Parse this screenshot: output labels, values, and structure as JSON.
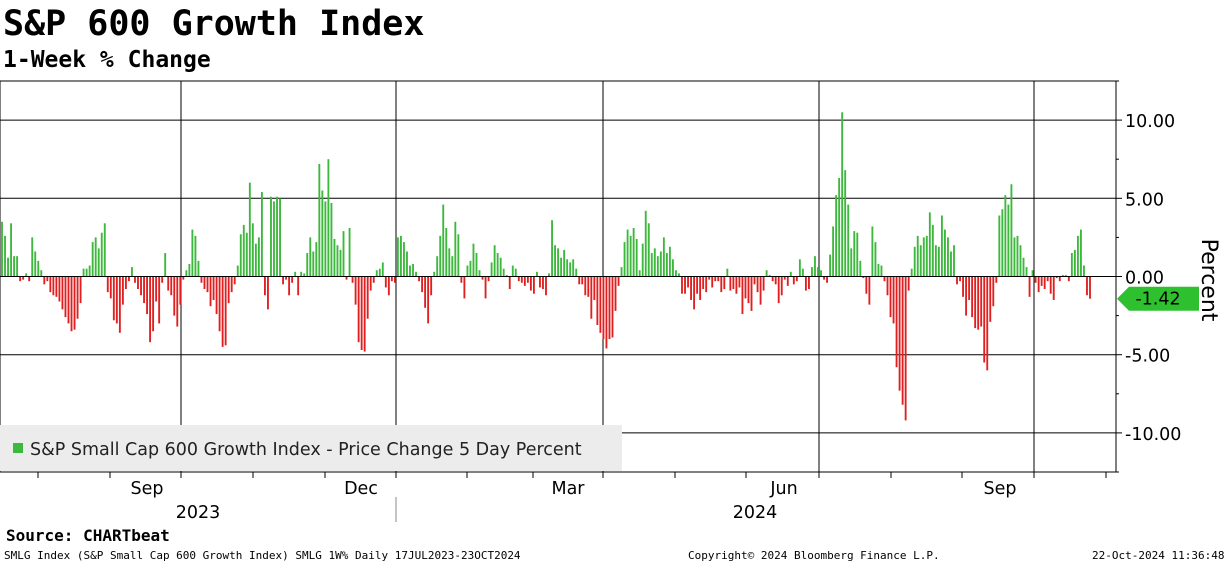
{
  "header": {
    "title": "S&P 600 Growth Index",
    "subtitle": "1-Week % Change"
  },
  "footer": {
    "source": "Source: CHARTbeat",
    "left": "SMLG Index (S&P Small Cap 600 Growth Index) SMLG 1W%  Daily 17JUL2023-23OCT2024",
    "center": "Copyright© 2024 Bloomberg Finance L.P.",
    "right": "22-Oct-2024 11:36:48"
  },
  "colors": {
    "positive": "#3cb83c",
    "negative": "#e02020",
    "last_value_bg": "#2ec02e",
    "legend_bg": "#ececec"
  },
  "chart_data": {
    "type": "bar",
    "title": "S&P 600 Growth Index",
    "subtitle": "1-Week % Change",
    "ylabel": "Percent",
    "ylim": [
      -12.5,
      12.5
    ],
    "y_ticks": [
      10,
      5,
      0,
      -5,
      -10
    ],
    "y_tick_labels": [
      "10.00",
      "5.00",
      "0.00",
      "-5.00",
      "-10.00"
    ],
    "month_labels": [
      "Sep",
      "Dec",
      "Mar",
      "Jun",
      "Sep"
    ],
    "year_labels": [
      "2023",
      "2024"
    ],
    "legend": "S&P Small Cap 600 Growth Index - Price Change 5 Day Percent",
    "legend_position": "bottom-left",
    "last_value": -1.42,
    "last_value_label": "-1.42",
    "date_range": [
      "2023-07-17",
      "2024-10-23"
    ],
    "values": [
      3.5,
      2.6,
      1.2,
      3.4,
      1.3,
      1.3,
      -0.3,
      -0.2,
      0.2,
      -0.3,
      2.5,
      1.6,
      1.0,
      0.4,
      -0.5,
      -0.3,
      -1.0,
      -1.2,
      -1.3,
      -1.6,
      -2.1,
      -2.6,
      -3.0,
      -3.5,
      -3.4,
      -2.7,
      -1.7,
      0.5,
      0.5,
      0.7,
      2.2,
      2.5,
      1.8,
      2.8,
      3.4,
      -1.0,
      -1.4,
      -2.8,
      -3.0,
      -3.6,
      -1.8,
      -0.8,
      -0.3,
      0.6,
      -0.4,
      -0.8,
      -1.2,
      -1.7,
      -2.4,
      -4.2,
      -3.5,
      -1.6,
      -3.0,
      -0.4,
      1.5,
      -0.9,
      -1.2,
      -2.5,
      -3.2,
      -1.8,
      -0.2,
      0.4,
      0.8,
      3.0,
      2.6,
      1.0,
      -0.4,
      -0.8,
      -1.0,
      -1.9,
      -1.5,
      -2.4,
      -3.5,
      -4.5,
      -4.4,
      -1.7,
      -1.0,
      -0.5,
      0.7,
      2.7,
      3.3,
      2.8,
      6.0,
      3.4,
      2.1,
      2.5,
      5.4,
      -1.2,
      -2.1,
      5.1,
      4.8,
      5.1,
      5.0,
      -0.5,
      -0.2,
      -1.2,
      -0.4,
      0.3,
      -1.2,
      0.3,
      0.2,
      1.5,
      2.5,
      1.6,
      2.2,
      7.2,
      5.5,
      4.8,
      7.5,
      4.7,
      2.4,
      2.0,
      1.7,
      2.9,
      -0.2,
      3.1,
      -0.4,
      -1.8,
      -4.2,
      -4.7,
      -4.8,
      -2.7,
      -0.9,
      -0.4,
      0.4,
      0.5,
      0.9,
      -0.7,
      -1.2,
      -0.3,
      -0.4,
      2.5,
      2.6,
      2.2,
      1.6,
      0.7,
      0.8,
      0.3,
      -0.3,
      -1.0,
      -2.0,
      -3.0,
      -1.2,
      0.3,
      1.3,
      2.6,
      4.6,
      3.1,
      1.8,
      1.3,
      3.5,
      2.7,
      -0.4,
      -1.4,
      0.7,
      1.0,
      2.1,
      1.5,
      0.4,
      -0.2,
      -1.4,
      -0.3,
      0.9,
      2.0,
      1.5,
      1.2,
      0.5,
      0.1,
      -0.8,
      0.7,
      0.5,
      -0.3,
      -0.4,
      -0.6,
      -0.4,
      -0.9,
      -1.1,
      0.3,
      -0.7,
      -0.8,
      -1.2,
      0.2,
      3.6,
      2.0,
      1.8,
      1.2,
      1.7,
      1.1,
      0.9,
      1.1,
      0.5,
      -0.5,
      -0.5,
      -1.2,
      -1.3,
      -2.7,
      -1.5,
      -3.1,
      -3.6,
      -4.0,
      -4.6,
      -4.0,
      -3.9,
      -2.2,
      -0.6,
      0.6,
      2.2,
      3.0,
      2.6,
      3.1,
      2.4,
      0.4,
      2.1,
      4.2,
      3.4,
      1.5,
      1.8,
      1.3,
      1.6,
      2.5,
      1.5,
      1.9,
      1.1,
      0.4,
      0.2,
      -1.1,
      -1.1,
      -0.7,
      -1.5,
      -2.1,
      -1.1,
      -1.5,
      -0.8,
      -1.0,
      -0.2,
      -0.7,
      -0.3,
      -0.3,
      -1.0,
      -0.8,
      0.5,
      -0.9,
      -0.8,
      -1.1,
      -0.7,
      -2.4,
      -1.4,
      -1.7,
      -2.2,
      -0.5,
      -1.0,
      -1.8,
      -0.9,
      0.4,
      0.1,
      -0.3,
      -0.5,
      -1.7,
      -1.2,
      -0.2,
      -0.6,
      0.3,
      -0.5,
      -0.3,
      1.1,
      0.5,
      -0.9,
      -0.8,
      0.6,
      1.3,
      0.6,
      0.4,
      -0.2,
      -0.4,
      1.4,
      3.2,
      5.2,
      6.3,
      10.5,
      6.8,
      4.6,
      1.8,
      2.9,
      2.8,
      1.0,
      -0.1,
      -1.1,
      -1.8,
      3.2,
      2.2,
      0.8,
      0.7,
      -0.3,
      -1.2,
      -2.6,
      -3.0,
      -5.8,
      -7.3,
      -8.2,
      -9.2,
      -0.9,
      0.5,
      1.9,
      2.6,
      2.0,
      2.5,
      2.6,
      4.1,
      3.3,
      2.0,
      1.9,
      3.9,
      3.0,
      2.5,
      1.6,
      2.0,
      -0.5,
      -0.3,
      -1.3,
      -2.5,
      -1.5,
      -2.6,
      -3.3,
      -3.4,
      -3.2,
      -5.5,
      -6.0,
      -2.9,
      -1.9,
      -0.4,
      3.9,
      4.3,
      5.2,
      4.6,
      5.9,
      2.5,
      2.6,
      2.0,
      1.2,
      0.6,
      -1.3,
      0.4,
      -0.4,
      -1.0,
      -0.6,
      -0.8,
      -0.3,
      -1.1,
      -1.5,
      -0.1,
      -0.3,
      0.1,
      0.1,
      -0.3,
      1.5,
      1.7,
      2.6,
      3.0,
      0.7,
      -1.2,
      -1.42
    ]
  }
}
